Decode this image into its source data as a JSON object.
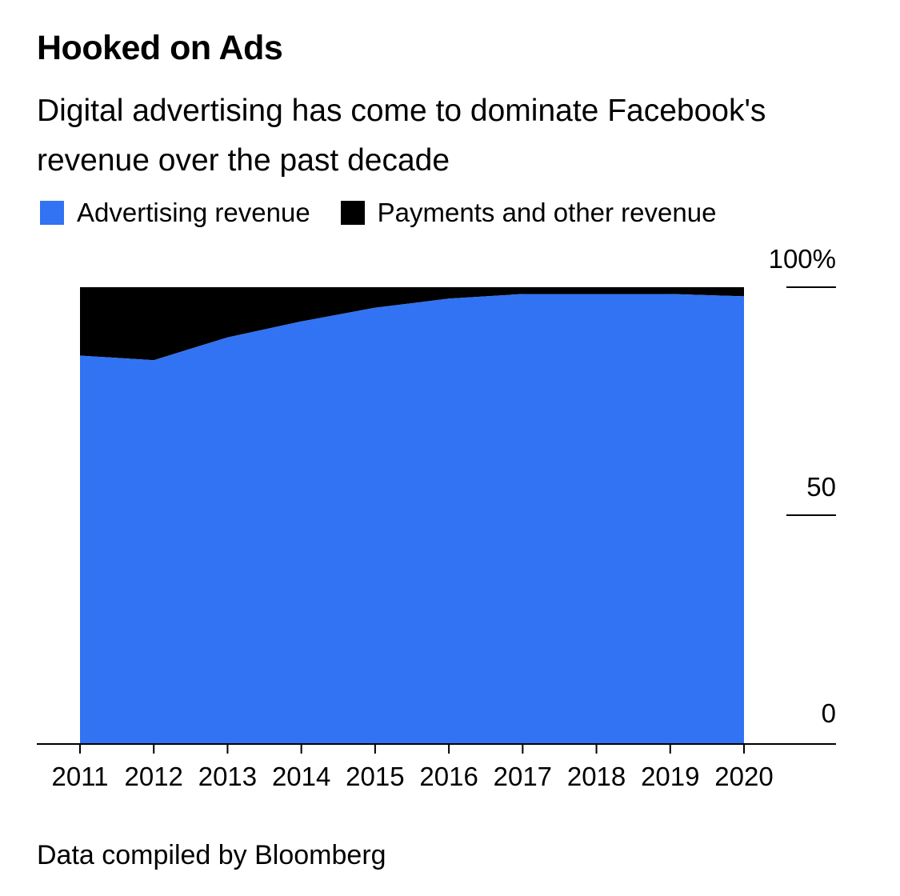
{
  "title": "Hooked on Ads",
  "subtitle": "Digital advertising has come to dominate Facebook's revenue over the past decade",
  "source": "Data compiled by Bloomberg",
  "colors": {
    "advertising": "#3173f2",
    "payments": "#000000",
    "background": "#ffffff"
  },
  "chart_data": {
    "type": "area",
    "stacked": true,
    "x": [
      "2011",
      "2012",
      "2013",
      "2014",
      "2015",
      "2016",
      "2017",
      "2018",
      "2019",
      "2020"
    ],
    "series": [
      {
        "name": "Advertising revenue",
        "values": [
          85,
          84,
          89,
          92.5,
          95.5,
          97.5,
          98.5,
          98.5,
          98.5,
          98
        ]
      },
      {
        "name": "Payments and other revenue",
        "values": [
          15,
          16,
          11,
          7.5,
          4.5,
          2.5,
          1.5,
          1.5,
          1.5,
          2
        ]
      }
    ],
    "y_ticks": [
      "100%",
      "50",
      "0"
    ],
    "y_tick_values": [
      100,
      50,
      0
    ],
    "ylim": [
      0,
      100
    ],
    "xlabel": "",
    "ylabel": "",
    "legend_position": "top-left",
    "y_axis_side": "right",
    "grid": false
  }
}
